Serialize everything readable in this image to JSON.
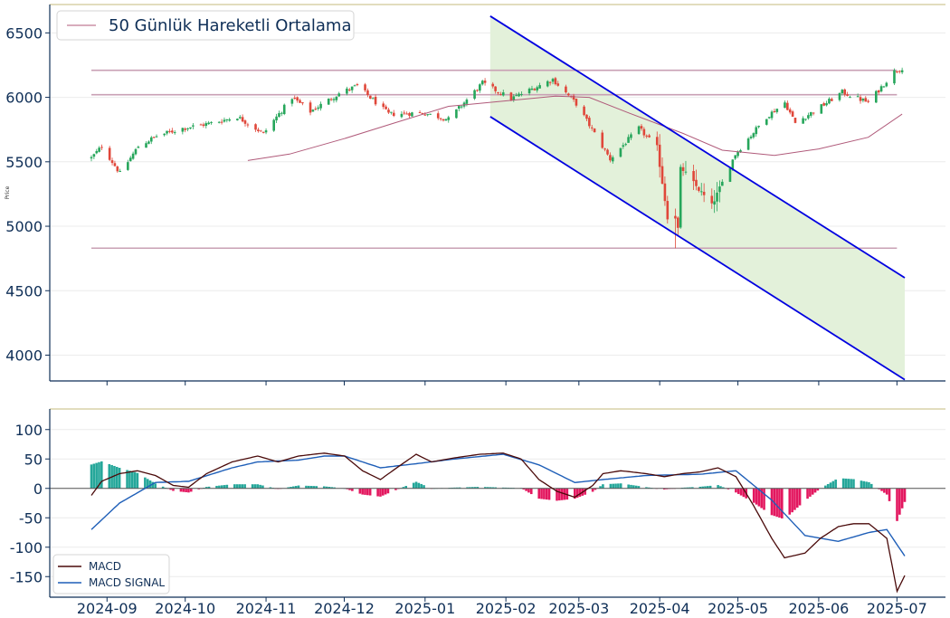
{
  "chart_data": [
    {
      "type": "candlestick",
      "title": "",
      "xlabel": "",
      "ylabel": "Price",
      "ylim": [
        3800,
        6720
      ],
      "yticks": [
        4000,
        4500,
        5000,
        5500,
        6000,
        6500
      ],
      "x_range": [
        "2024-08-19",
        "2025-07-10"
      ],
      "xticks": [
        "2024-09",
        "2024-10",
        "2024-11",
        "2024-12",
        "2025-01",
        "2025-02",
        "2025-03",
        "2025-04",
        "2025-05",
        "2025-06",
        "2025-07"
      ],
      "legend": {
        "position": "top-left",
        "entries": [
          "50 Günlük Hareketli Ortalama"
        ]
      },
      "colors": {
        "up": "#26a65b",
        "down": "#e0473a",
        "ma": "#b05a7a",
        "hline": "#c9a0b4",
        "channel": "#0000e0",
        "channel_fill": "#e3f1da",
        "spine": "#0f2f57",
        "top_edge": "#d8d2a8"
      },
      "price_path": [
        [
          "2024-08-26",
          5530
        ],
        [
          "2024-08-30",
          5620
        ],
        [
          "2024-09-06",
          5410
        ],
        [
          "2024-09-13",
          5620
        ],
        [
          "2024-09-20",
          5700
        ],
        [
          "2024-09-30",
          5760
        ],
        [
          "2024-10-11",
          5800
        ],
        [
          "2024-10-21",
          5850
        ],
        [
          "2024-10-31",
          5720
        ],
        [
          "2024-11-11",
          6000
        ],
        [
          "2024-11-18",
          5890
        ],
        [
          "2024-11-29",
          6030
        ],
        [
          "2024-12-06",
          6090
        ],
        [
          "2024-12-18",
          5870
        ],
        [
          "2024-12-31",
          5880
        ],
        [
          "2025-01-10",
          5830
        ],
        [
          "2025-01-23",
          6110
        ],
        [
          "2025-02-03",
          5990
        ],
        [
          "2025-02-19",
          6140
        ],
        [
          "2025-02-28",
          5950
        ],
        [
          "2025-03-10",
          5620
        ],
        [
          "2025-03-13",
          5520
        ],
        [
          "2025-03-24",
          5760
        ],
        [
          "2025-03-31",
          5610
        ],
        [
          "2025-04-04",
          5070
        ],
        [
          "2025-04-08",
          4980
        ],
        [
          "2025-04-09",
          5460
        ],
        [
          "2025-04-21",
          5160
        ],
        [
          "2025-04-30",
          5560
        ],
        [
          "2025-05-12",
          5850
        ],
        [
          "2025-05-19",
          5960
        ],
        [
          "2025-05-23",
          5800
        ],
        [
          "2025-06-02",
          5930
        ],
        [
          "2025-06-10",
          6040
        ],
        [
          "2025-06-20",
          5960
        ],
        [
          "2025-06-30",
          6200
        ],
        [
          "2025-07-03",
          6230
        ]
      ],
      "low_point": [
        "2025-04-07",
        4830
      ],
      "moving_average_50": [
        [
          "2024-10-25",
          5510
        ],
        [
          "2024-11-10",
          5560
        ],
        [
          "2024-12-01",
          5680
        ],
        [
          "2024-12-20",
          5800
        ],
        [
          "2025-01-10",
          5930
        ],
        [
          "2025-01-31",
          5970
        ],
        [
          "2025-02-20",
          6010
        ],
        [
          "2025-03-05",
          6000
        ],
        [
          "2025-03-20",
          5880
        ],
        [
          "2025-04-10",
          5720
        ],
        [
          "2025-04-25",
          5590
        ],
        [
          "2025-05-15",
          5550
        ],
        [
          "2025-06-01",
          5600
        ],
        [
          "2025-06-20",
          5690
        ],
        [
          "2025-07-03",
          5870
        ]
      ],
      "horizontal_lines": [
        {
          "y": 6210,
          "x": [
            "2024-08-26",
            "2025-07-01"
          ]
        },
        {
          "y": 6020,
          "x": [
            "2024-08-26",
            "2025-07-01"
          ]
        },
        {
          "y": 4830,
          "x": [
            "2024-08-26",
            "2025-07-01"
          ]
        }
      ],
      "channel": {
        "upper": [
          [
            "2025-01-26",
            6630
          ],
          [
            "2025-07-04",
            4600
          ]
        ],
        "lower": [
          [
            "2025-01-26",
            5850
          ],
          [
            "2025-07-04",
            3810
          ]
        ]
      }
    },
    {
      "type": "line",
      "title": "",
      "ylim": [
        -185,
        135
      ],
      "yticks": [
        -150,
        -100,
        -50,
        0,
        50,
        100
      ],
      "legend": {
        "position": "bottom-left",
        "entries": [
          "MACD",
          "MACD SIGNAL"
        ]
      },
      "colors": {
        "macd": "#4a0a0a",
        "signal": "#1f5fb8",
        "hist_pos": "#25a79a",
        "hist_neg": "#e3175f",
        "zero": "#555555"
      },
      "series": [
        {
          "name": "MACD",
          "points": [
            [
              "2024-08-26",
              -12
            ],
            [
              "2024-08-30",
              12
            ],
            [
              "2024-09-06",
              25
            ],
            [
              "2024-09-13",
              30
            ],
            [
              "2024-09-20",
              22
            ],
            [
              "2024-09-27",
              5
            ],
            [
              "2024-10-03",
              2
            ],
            [
              "2024-10-10",
              25
            ],
            [
              "2024-10-20",
              45
            ],
            [
              "2024-10-30",
              55
            ],
            [
              "2024-11-07",
              45
            ],
            [
              "2024-11-15",
              55
            ],
            [
              "2024-11-25",
              60
            ],
            [
              "2024-12-03",
              55
            ],
            [
              "2024-12-10",
              30
            ],
            [
              "2024-12-17",
              15
            ],
            [
              "2024-12-25",
              40
            ],
            [
              "2024-12-31",
              58
            ],
            [
              "2025-01-06",
              45
            ],
            [
              "2025-01-15",
              52
            ],
            [
              "2025-01-25",
              58
            ],
            [
              "2025-02-03",
              60
            ],
            [
              "2025-02-10",
              50
            ],
            [
              "2025-02-17",
              15
            ],
            [
              "2025-02-24",
              -5
            ],
            [
              "2025-03-03",
              -15
            ],
            [
              "2025-03-10",
              5
            ],
            [
              "2025-03-14",
              25
            ],
            [
              "2025-03-21",
              30
            ],
            [
              "2025-03-31",
              25
            ],
            [
              "2025-04-07",
              20
            ],
            [
              "2025-04-14",
              25
            ],
            [
              "2025-04-21",
              28
            ],
            [
              "2025-04-28",
              35
            ],
            [
              "2025-05-05",
              20
            ],
            [
              "2025-05-12",
              -30
            ],
            [
              "2025-05-19",
              -85
            ],
            [
              "2025-05-24",
              -118
            ],
            [
              "2025-06-01",
              -110
            ],
            [
              "2025-06-07",
              -85
            ],
            [
              "2025-06-14",
              -65
            ],
            [
              "2025-06-20",
              -60
            ],
            [
              "2025-06-26",
              -60
            ],
            [
              "2025-07-03",
              -85
            ],
            [
              "2025-07-07",
              -175
            ],
            [
              "2025-07-10",
              -148
            ]
          ]
        },
        {
          "name": "MACD SIGNAL",
          "points": [
            [
              "2024-08-26",
              -70
            ],
            [
              "2024-09-06",
              -25
            ],
            [
              "2024-09-20",
              10
            ],
            [
              "2024-10-03",
              12
            ],
            [
              "2024-10-20",
              35
            ],
            [
              "2024-10-30",
              45
            ],
            [
              "2024-11-15",
              48
            ],
            [
              "2024-11-25",
              55
            ],
            [
              "2024-12-03",
              55
            ],
            [
              "2024-12-17",
              35
            ],
            [
              "2024-12-31",
              42
            ],
            [
              "2025-01-15",
              50
            ],
            [
              "2025-02-03",
              58
            ],
            [
              "2025-02-17",
              40
            ],
            [
              "2025-03-03",
              10
            ],
            [
              "2025-03-14",
              15
            ],
            [
              "2025-03-31",
              22
            ],
            [
              "2025-04-21",
              24
            ],
            [
              "2025-05-05",
              30
            ],
            [
              "2025-05-19",
              -20
            ],
            [
              "2025-06-01",
              -80
            ],
            [
              "2025-06-14",
              -90
            ],
            [
              "2025-06-26",
              -75
            ],
            [
              "2025-07-03",
              -70
            ],
            [
              "2025-07-10",
              -115
            ]
          ]
        }
      ]
    }
  ],
  "legend_top": {
    "label": "50 Günlük Hareketli Ortalama"
  },
  "legend_bottom": {
    "macd_label": "MACD",
    "signal_label": "MACD SIGNAL"
  }
}
